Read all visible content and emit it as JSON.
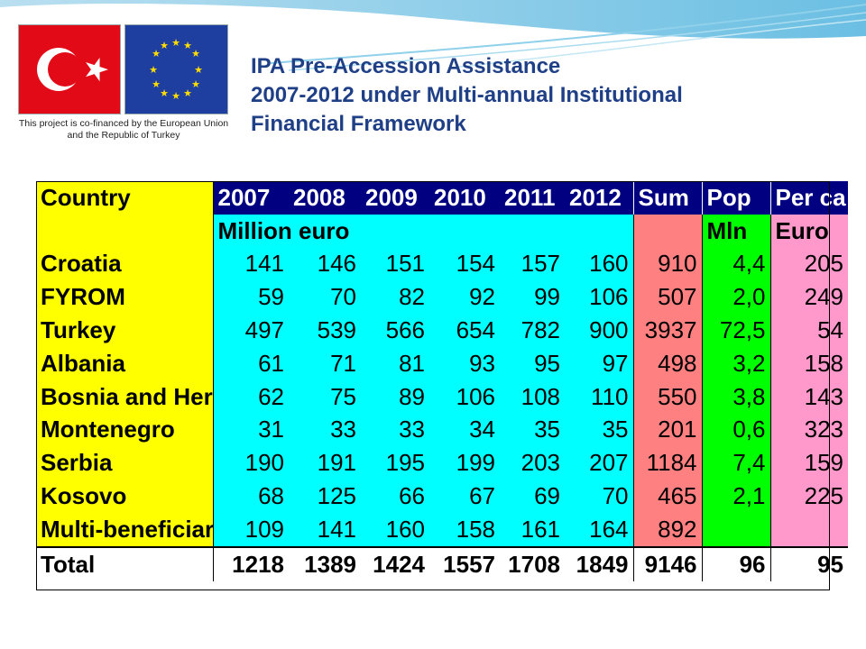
{
  "cofinance_text": "This project is co-financed by the European Union and the Republic of Turkey",
  "title": {
    "line1": "IPA Pre-Accession Assistance",
    "line2": "2007-2012 under Multi-annual Institutional",
    "line3": "Financial Framework"
  },
  "table": {
    "headers": [
      "Country",
      "2007",
      "2008",
      "2009",
      "2010",
      "2011",
      "2012",
      "Sum",
      "Pop",
      "Per ca"
    ],
    "units": {
      "years": "Million euro",
      "pop": "Mln",
      "per_capita": "Euro"
    },
    "rows": [
      {
        "country": "Croatia",
        "values": [
          "141",
          "146",
          "151",
          "154",
          "157",
          "160"
        ],
        "sum": "910",
        "pop": "4,4",
        "per_capita": "205"
      },
      {
        "country": "FYROM",
        "values": [
          "59",
          "70",
          "82",
          "92",
          "99",
          "106"
        ],
        "sum": "507",
        "pop": "2,0",
        "per_capita": "249"
      },
      {
        "country": "Turkey",
        "values": [
          "497",
          "539",
          "566",
          "654",
          "782",
          "900"
        ],
        "sum": "3937",
        "pop": "72,5",
        "per_capita": "54"
      },
      {
        "country": "Albania",
        "values": [
          "61",
          "71",
          "81",
          "93",
          "95",
          "97"
        ],
        "sum": "498",
        "pop": "3,2",
        "per_capita": "158"
      },
      {
        "country": "Bosnia and Her",
        "values": [
          "62",
          "75",
          "89",
          "106",
          "108",
          "110"
        ],
        "sum": "550",
        "pop": "3,8",
        "per_capita": "143"
      },
      {
        "country": "Montenegro",
        "values": [
          "31",
          "33",
          "33",
          "34",
          "35",
          "35"
        ],
        "sum": "201",
        "pop": "0,6",
        "per_capita": "323"
      },
      {
        "country": "Serbia",
        "values": [
          "190",
          "191",
          "195",
          "199",
          "203",
          "207"
        ],
        "sum": "1184",
        "pop": "7,4",
        "per_capita": "159"
      },
      {
        "country": "Kosovo",
        "values": [
          "68",
          "125",
          "66",
          "67",
          "69",
          "70"
        ],
        "sum": "465",
        "pop": "2,1",
        "per_capita": "225"
      },
      {
        "country": "Multi-beneficiar",
        "values": [
          "109",
          "141",
          "160",
          "158",
          "161",
          "164"
        ],
        "sum": "892",
        "pop": "",
        "per_capita": ""
      }
    ],
    "total": {
      "label": "Total",
      "values": [
        "1218",
        "1389",
        "1424",
        "1557",
        "1708",
        "1849"
      ],
      "sum": "9146",
      "pop": "96",
      "per_capita": "95"
    }
  }
}
